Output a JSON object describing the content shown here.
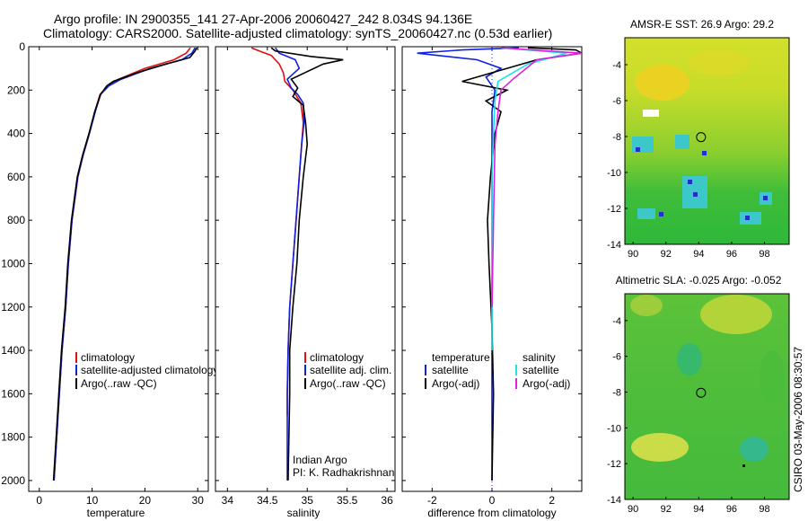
{
  "header": {
    "title_line1": "Argo profile: IN 2900355_141 27-Apr-2006 20060427_242 8.034S 94.136E",
    "title_line2": "Climatology: CARS2000. Satellite-adjusted climatology: synTS_20060427.nc (0.53d earlier)"
  },
  "credit": "CSIRO 03-May-2006 08:30:57",
  "colors": {
    "climatology": "#e01010",
    "satellite": "#1020e0",
    "argo": "#000000",
    "sat_salinity": "#20e0e8",
    "argo_adj_salinity": "#e020e0"
  },
  "chart_data": [
    {
      "id": "temperature",
      "type": "line",
      "xlabel": "temperature",
      "xlim": [
        -2,
        32
      ],
      "ylim": [
        2050,
        0
      ],
      "y_reversed": true,
      "xticks": [
        0,
        10,
        20,
        30
      ],
      "yticks": [
        0,
        200,
        400,
        600,
        800,
        1000,
        1200,
        1400,
        1600,
        1800,
        2000
      ],
      "legend": {
        "placement": "lower-middle",
        "entries": [
          "climatology",
          "satellite-adjusted climatology",
          "Argo(..raw -QC)"
        ]
      },
      "series": [
        {
          "name": "climatology",
          "color_key": "climatology",
          "x": [
            28.6,
            27.8,
            25.5,
            20.0,
            15.0,
            13.0,
            11.5,
            10.5,
            9.5,
            8.3,
            7.3,
            6.2,
            5.5,
            5.0,
            4.3,
            3.8,
            3.3,
            2.8
          ],
          "y": [
            5,
            30,
            60,
            100,
            150,
            180,
            220,
            300,
            400,
            500,
            600,
            800,
            1000,
            1200,
            1400,
            1600,
            1800,
            2000
          ]
        },
        {
          "name": "satellite-adjusted climatology",
          "color_key": "satellite",
          "x": [
            29.5,
            28.9,
            27.0,
            21.0,
            15.5,
            13.2,
            11.6,
            10.6,
            9.5,
            8.3,
            7.3,
            6.2,
            5.5,
            5.0,
            4.3,
            3.8,
            3.3,
            2.8
          ],
          "y": [
            5,
            30,
            60,
            100,
            150,
            180,
            220,
            300,
            400,
            500,
            600,
            800,
            1000,
            1200,
            1400,
            1600,
            1800,
            2000
          ]
        },
        {
          "name": "Argo(..raw -QC)",
          "color_key": "argo",
          "x": [
            29.8,
            29.5,
            28.5,
            24.0,
            18.5,
            14.0,
            12.8,
            11.6,
            10.5,
            9.4,
            8.2,
            7.2,
            6.1,
            5.4,
            4.9,
            4.2,
            3.7,
            3.2,
            2.7
          ],
          "y": [
            5,
            20,
            50,
            80,
            120,
            160,
            180,
            220,
            300,
            400,
            500,
            600,
            800,
            1000,
            1200,
            1400,
            1600,
            1800,
            2000
          ]
        }
      ]
    },
    {
      "id": "salinity",
      "type": "line",
      "xlabel": "salinity",
      "xlim": [
        33.85,
        36.1
      ],
      "ylim": [
        2050,
        0
      ],
      "y_reversed": true,
      "xticks": [
        34,
        34.5,
        35,
        35.5,
        36
      ],
      "legend": {
        "placement": "lower-right",
        "entries": [
          "climatology",
          "satellite adj. clim.",
          "Argo(..raw -QC)"
        ]
      },
      "annotation": [
        "Indian Argo",
        "PI: K. Radhakrishnan"
      ],
      "series": [
        {
          "name": "climatology",
          "color_key": "climatology",
          "x": [
            34.3,
            34.4,
            34.55,
            34.65,
            34.7,
            34.72,
            34.82,
            34.92,
            34.95,
            34.93,
            34.9,
            34.86,
            34.82,
            34.78,
            34.76,
            34.75,
            34.75
          ],
          "y": [
            5,
            20,
            40,
            80,
            120,
            160,
            200,
            260,
            350,
            450,
            600,
            800,
            1000,
            1200,
            1400,
            1600,
            1700
          ]
        },
        {
          "name": "satellite adj. clim.",
          "color_key": "satellite",
          "x": [
            34.6,
            34.65,
            34.85,
            34.9,
            34.75,
            34.8,
            34.88,
            34.95,
            34.96,
            34.93,
            34.9,
            34.86,
            34.82,
            34.78,
            34.76,
            34.75,
            34.75
          ],
          "y": [
            5,
            30,
            60,
            100,
            150,
            190,
            220,
            260,
            350,
            450,
            600,
            800,
            1000,
            1200,
            1400,
            1600,
            2000
          ]
        },
        {
          "name": "Argo(..raw -QC)",
          "color_key": "argo",
          "x": [
            34.55,
            34.6,
            35.05,
            35.45,
            35.2,
            34.8,
            34.88,
            34.82,
            34.95,
            34.98,
            35.0,
            34.95,
            34.9,
            34.87,
            34.82,
            34.78,
            34.78,
            34.77,
            34.76
          ],
          "y": [
            5,
            20,
            45,
            60,
            80,
            150,
            190,
            230,
            270,
            350,
            450,
            600,
            800,
            1000,
            1200,
            1400,
            1600,
            1800,
            2000
          ]
        }
      ]
    },
    {
      "id": "difference",
      "type": "line",
      "xlabel": "difference from climatology",
      "xlim": [
        -3,
        3
      ],
      "ylim": [
        2050,
        0
      ],
      "y_reversed": true,
      "xticks": [
        -2,
        0,
        2
      ],
      "legend": {
        "placement": "lower-middle",
        "columns": [
          {
            "heading": "temperature",
            "entries": [
              "satellite",
              "Argo(-adj)"
            ]
          },
          {
            "heading": "salinity",
            "entries": [
              "satellite",
              "Argo(-adj)"
            ]
          }
        ]
      },
      "series": [
        {
          "name": "temperature satellite",
          "color_key": "satellite",
          "x": [
            0.9,
            -1.0,
            -2.5,
            -0.5,
            0.3,
            -0.2,
            0.1,
            0,
            0,
            0,
            0,
            0,
            0,
            0,
            0
          ],
          "y": [
            5,
            15,
            30,
            60,
            100,
            140,
            200,
            300,
            500,
            800,
            1000,
            1200,
            1500,
            1800,
            2000
          ]
        },
        {
          "name": "temperature Argo(-adj)",
          "color_key": "argo",
          "x": [
            1.2,
            2.8,
            3.0,
            1.5,
            -1.0,
            0.5,
            -0.2,
            0.3,
            0.1,
            -0.05,
            -0.15,
            -0.1,
            0.0,
            0.05,
            0.0
          ],
          "y": [
            5,
            15,
            30,
            60,
            160,
            200,
            250,
            300,
            400,
            600,
            800,
            1000,
            1300,
            1600,
            2000
          ]
        },
        {
          "name": "salinity satellite",
          "color_key": "sat_salinity",
          "x": [
            0.3,
            2.5,
            1.2,
            0.2,
            0.1,
            0.05,
            0,
            0,
            0,
            0
          ],
          "y": [
            5,
            30,
            80,
            160,
            250,
            400,
            600,
            900,
            1200,
            1400
          ]
        },
        {
          "name": "salinity Argo(-adj)",
          "color_key": "argo_adj_salinity",
          "x": [
            0.3,
            3.0,
            1.5,
            0.7,
            0.3,
            0.2,
            0.1,
            0.05,
            0
          ],
          "y": [
            5,
            30,
            60,
            150,
            200,
            300,
            450,
            800,
            1200
          ]
        }
      ]
    },
    {
      "id": "sst-map",
      "type": "heatmap",
      "title": "AMSR-E SST: 26.9 Argo: 29.2",
      "xlim": [
        89.5,
        99.5
      ],
      "ylim": [
        -14,
        -2.5
      ],
      "xticks": [
        90,
        92,
        94,
        96,
        98
      ],
      "yticks": [
        -4,
        -6,
        -8,
        -10,
        -12,
        -14
      ],
      "marker": {
        "lon": 94.136,
        "lat": -8.034
      }
    },
    {
      "id": "sla-map",
      "type": "heatmap",
      "title": "Altimetric SLA: -0.025 Argo: -0.052",
      "xlim": [
        89.5,
        99.5
      ],
      "ylim": [
        -14,
        -2.5
      ],
      "xticks": [
        90,
        92,
        94,
        96,
        98
      ],
      "yticks": [
        -4,
        -6,
        -8,
        -10,
        -12,
        -14
      ],
      "marker": {
        "lon": 94.136,
        "lat": -8.034
      }
    }
  ]
}
